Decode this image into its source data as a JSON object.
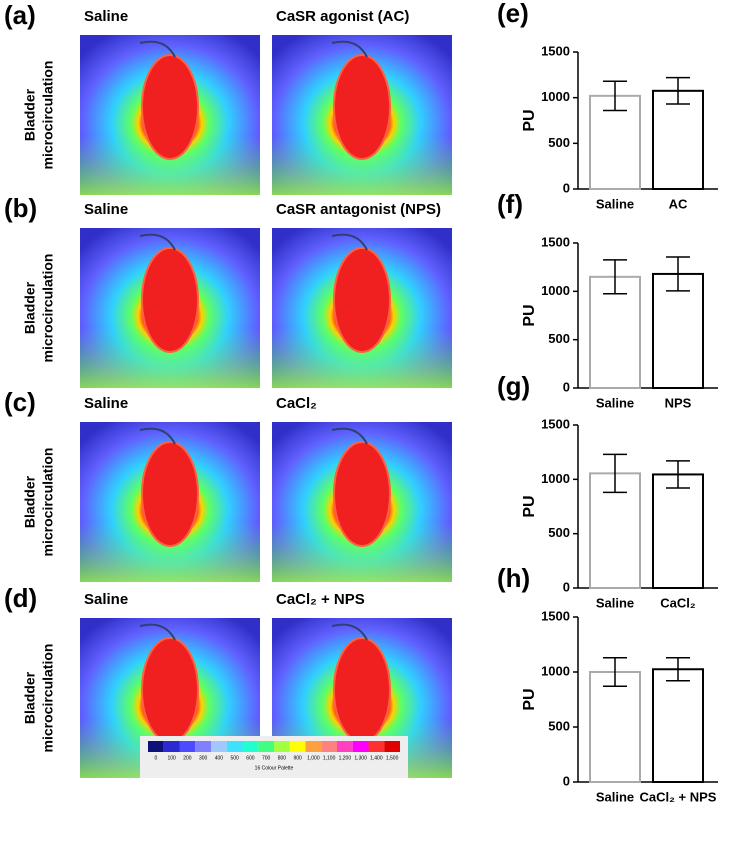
{
  "panels": [
    {
      "label": "(a)",
      "left_title": "Saline",
      "right_title": "CaSR agonist (AC)",
      "ylabel": [
        "Bladder",
        "microcirculation"
      ]
    },
    {
      "label": "(b)",
      "left_title": "Saline",
      "right_title": "CaSR antagonist (NPS)",
      "ylabel": [
        "Bladder",
        "microcirculation"
      ]
    },
    {
      "label": "(c)",
      "left_title": "Saline",
      "right_title": "CaCl₂",
      "ylabel": [
        "Bladder",
        "microcirculation"
      ]
    },
    {
      "label": "(d)",
      "left_title": "Saline",
      "right_title": "CaCl₂ + NPS",
      "ylabel": [
        "Bladder",
        "microcirculation"
      ]
    }
  ],
  "colorbar": {
    "title": "16 Colour Palette",
    "labels": [
      "0",
      "100",
      "200",
      "300",
      "400",
      "500",
      "600",
      "700",
      "800",
      "900",
      "1,000",
      "1,100",
      "1,200",
      "1,300",
      "1,400",
      "1,500"
    ],
    "colors": [
      "#10107a",
      "#2a2ad0",
      "#4b4bff",
      "#7f7fff",
      "#a0c8ff",
      "#40e0ff",
      "#20ffd0",
      "#40ff80",
      "#a0ff40",
      "#ffff00",
      "#ffa040",
      "#ff8080",
      "#ff40c0",
      "#ff00ff",
      "#ff3030",
      "#e00000"
    ]
  },
  "chart_data": [
    {
      "type": "bar",
      "panel": "(e)",
      "ylabel": "PU",
      "categories": [
        "Saline",
        "AC"
      ],
      "values": [
        1020,
        1075
      ],
      "errors": [
        160,
        145
      ],
      "colors": [
        "#aaaaaa",
        "#000000"
      ],
      "ylim": [
        0,
        1500
      ],
      "yticks": [
        0,
        500,
        1000,
        1500
      ]
    },
    {
      "type": "bar",
      "panel": "(f)",
      "ylabel": "PU",
      "categories": [
        "Saline",
        "NPS"
      ],
      "values": [
        1150,
        1180
      ],
      "errors": [
        175,
        175
      ],
      "colors": [
        "#aaaaaa",
        "#000000"
      ],
      "ylim": [
        0,
        1500
      ],
      "yticks": [
        0,
        500,
        1000,
        1500
      ]
    },
    {
      "type": "bar",
      "panel": "(g)",
      "ylabel": "PU",
      "categories": [
        "Saline",
        "CaCl₂"
      ],
      "values": [
        1055,
        1045
      ],
      "errors": [
        175,
        125
      ],
      "colors": [
        "#aaaaaa",
        "#000000"
      ],
      "ylim": [
        0,
        1500
      ],
      "yticks": [
        0,
        500,
        1000,
        1500
      ]
    },
    {
      "type": "bar",
      "panel": "(h)",
      "ylabel": "PU",
      "categories": [
        "Saline",
        "CaCl₂ + NPS"
      ],
      "values": [
        1000,
        1025
      ],
      "errors": [
        130,
        105
      ],
      "colors": [
        "#aaaaaa",
        "#000000"
      ],
      "ylim": [
        0,
        1500
      ],
      "yticks": [
        0,
        500,
        1000,
        1500
      ]
    }
  ]
}
